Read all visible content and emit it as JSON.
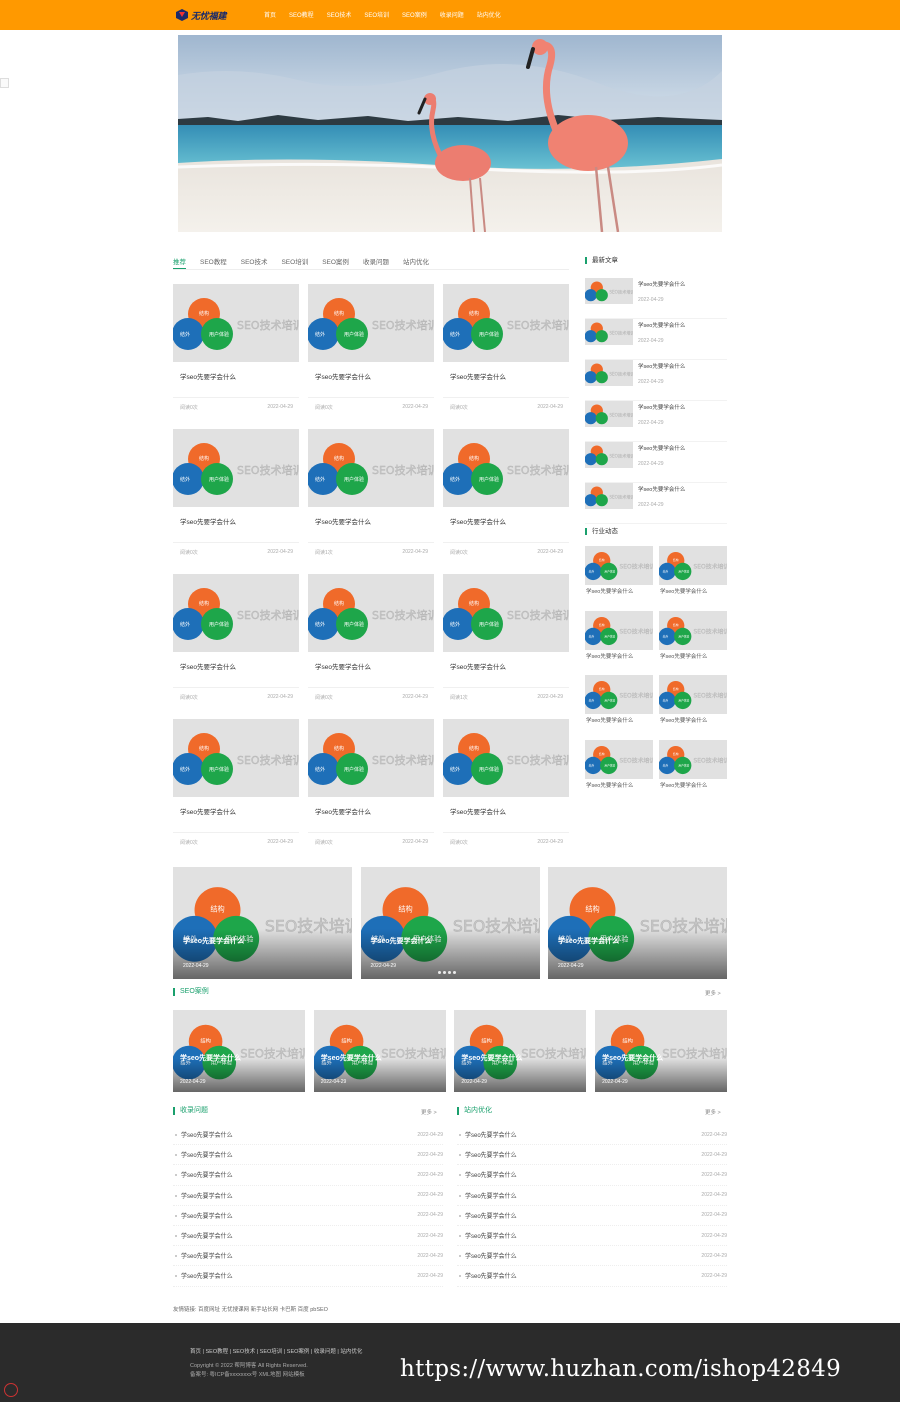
{
  "colors": {
    "accent": "#ff9900",
    "green": "#1aa06d",
    "footer_bg": "#2b2b2b"
  },
  "header": {
    "logo_text": "无忧福建",
    "nav": [
      "首页",
      "SEO教程",
      "SEO技术",
      "SEO培训",
      "SEO案例",
      "收录问题",
      "站内优化"
    ]
  },
  "hero": {
    "icon": "flamingo-beach-banner-image"
  },
  "tabs": [
    "推荐",
    "SEO教程",
    "SEO技术",
    "SEO培训",
    "SEO案例",
    "收录问题",
    "站内优化"
  ],
  "thumb_text": {
    "top": "结构",
    "left": "结外",
    "right": "用户体验",
    "watermark": "SEO技术培训"
  },
  "grid_cards": [
    {
      "title": "学seo先要学会什么",
      "views": "阅读0次",
      "date": "2022-04-29"
    },
    {
      "title": "学seo先要学会什么",
      "views": "阅读0次",
      "date": "2022-04-29"
    },
    {
      "title": "学seo先要学会什么",
      "views": "阅读0次",
      "date": "2022-04-29"
    },
    {
      "title": "学seo先要学会什么",
      "views": "阅读0次",
      "date": "2022-04-29"
    },
    {
      "title": "学seo先要学会什么",
      "views": "阅读1次",
      "date": "2022-04-29"
    },
    {
      "title": "学seo先要学会什么",
      "views": "阅读0次",
      "date": "2022-04-29"
    },
    {
      "title": "学seo先要学会什么",
      "views": "阅读0次",
      "date": "2022-04-29"
    },
    {
      "title": "学seo先要学会什么",
      "views": "阅读0次",
      "date": "2022-04-29"
    },
    {
      "title": "学seo先要学会什么",
      "views": "阅读1次",
      "date": "2022-04-29"
    },
    {
      "title": "学seo先要学会什么",
      "views": "阅读0次",
      "date": "2022-04-29"
    },
    {
      "title": "学seo先要学会什么",
      "views": "阅读0次",
      "date": "2022-04-29"
    },
    {
      "title": "学seo先要学会什么",
      "views": "阅读0次",
      "date": "2022-04-29"
    }
  ],
  "sidebar": {
    "latest_title": "最新文章",
    "latest": [
      {
        "title": "学seo先要学会什么",
        "date": "2022-04-29"
      },
      {
        "title": "学seo先要学会什么",
        "date": "2022-04-29"
      },
      {
        "title": "学seo先要学会什么",
        "date": "2022-04-29"
      },
      {
        "title": "学seo先要学会什么",
        "date": "2022-04-29"
      },
      {
        "title": "学seo先要学会什么",
        "date": "2022-04-29"
      },
      {
        "title": "学seo先要学会什么",
        "date": "2022-04-29"
      }
    ],
    "industry_title": "行业动态",
    "industry": [
      "学seo先要学会什么",
      "学seo先要学会什么",
      "学seo先要学会什么",
      "学seo先要学会什么",
      "学seo先要学会什么",
      "学seo先要学会什么",
      "学seo先要学会什么",
      "学seo先要学会什么"
    ]
  },
  "carousel": {
    "slides": [
      {
        "title": "学seo先要学会什么",
        "date": "2022-04-29"
      },
      {
        "title": "学seo先要学会什么",
        "date": "2022-04-29"
      },
      {
        "title": "学seo先要学会什么",
        "date": "2022-04-29"
      }
    ]
  },
  "cases": {
    "title": "SEO案例",
    "more": "更多 >",
    "items": [
      {
        "title": "学seo先要学会什么",
        "date": "2022-04-29"
      },
      {
        "title": "学seo先要学会什么",
        "date": "2022-04-29"
      },
      {
        "title": "学seo先要学会什么",
        "date": "2022-04-29"
      },
      {
        "title": "学seo先要学会什么",
        "date": "2022-04-29"
      }
    ]
  },
  "list_left": {
    "title": "收录问题",
    "more": "更多 >",
    "rows": [
      {
        "title": "学seo先要学会什么",
        "date": "2022-04-29"
      },
      {
        "title": "学seo先要学会什么",
        "date": "2022-04-29"
      },
      {
        "title": "学seo先要学会什么",
        "date": "2022-04-29"
      },
      {
        "title": "学seo先要学会什么",
        "date": "2022-04-29"
      },
      {
        "title": "学seo先要学会什么",
        "date": "2022-04-29"
      },
      {
        "title": "学seo先要学会什么",
        "date": "2022-04-29"
      },
      {
        "title": "学seo先要学会什么",
        "date": "2022-04-29"
      },
      {
        "title": "学seo先要学会什么",
        "date": "2022-04-29"
      }
    ]
  },
  "list_right": {
    "title": "站内优化",
    "more": "更多 >",
    "rows": [
      {
        "title": "学seo先要学会什么",
        "date": "2022-04-29"
      },
      {
        "title": "学seo先要学会什么",
        "date": "2022-04-29"
      },
      {
        "title": "学seo先要学会什么",
        "date": "2022-04-29"
      },
      {
        "title": "学seo先要学会什么",
        "date": "2022-04-29"
      },
      {
        "title": "学seo先要学会什么",
        "date": "2022-04-29"
      },
      {
        "title": "学seo先要学会什么",
        "date": "2022-04-29"
      },
      {
        "title": "学seo先要学会什么",
        "date": "2022-04-29"
      },
      {
        "title": "学seo先要学会什么",
        "date": "2022-04-29"
      }
    ]
  },
  "friend_links": "友情链接: 百度网址 无忧搜课网 新手站长网 卡巴斯 百度 pbSEO",
  "footer": {
    "nav": "首页 | SEO教程 | SEO技术 | SEO培训 | SEO案例 | 收录问题 | 站内优化",
    "copyright": "Copyright © 2022 帮阿博客 All Rights Reserved.",
    "icp": "备案号: 粤ICP备xxxxxxxx号 XML地图 网站模板",
    "watermark": "https://www.huzhan.com/ishop42849"
  }
}
